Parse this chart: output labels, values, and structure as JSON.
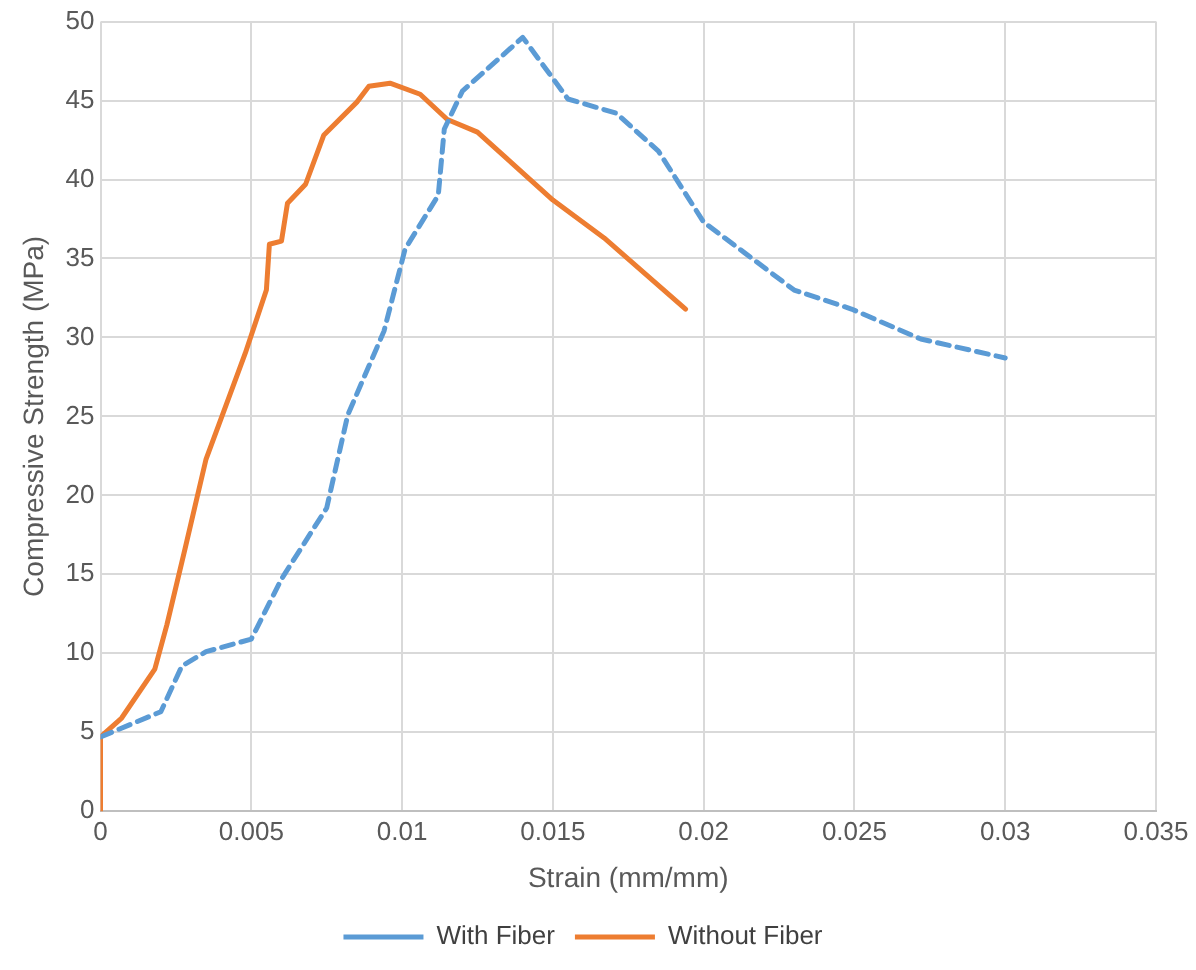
{
  "chart_data": {
    "type": "line",
    "xlabel": "Strain (mm/mm)",
    "ylabel": "Compressive Strength (MPa)",
    "xlim": [
      0,
      0.035
    ],
    "xticks": [
      0,
      0.005,
      0.01,
      0.015,
      0.02,
      0.025,
      0.03,
      0.035
    ],
    "ylim": [
      0,
      50
    ],
    "yticks": [
      0,
      5,
      10,
      15,
      20,
      25,
      30,
      35,
      40,
      45,
      50
    ],
    "grid": true,
    "legend": "bottom",
    "marker": "none",
    "series": [
      {
        "name": "With Fiber",
        "color": "#5b9bd5",
        "line_style": "dashed",
        "x": [
          0,
          0.002,
          0.0027,
          0.0035,
          0.005,
          0.006,
          0.0075,
          0.0082,
          0.0094,
          0.0101,
          0.0112,
          0.0114,
          0.012,
          0.014,
          0.0155,
          0.0171,
          0.0185,
          0.02,
          0.023,
          0.0249,
          0.0272,
          0.03
        ],
        "values": [
          4.7,
          6.3,
          9.2,
          10.1,
          10.9,
          14.7,
          19.2,
          25.1,
          30.4,
          35.6,
          39,
          43.2,
          45.6,
          49,
          45.1,
          44.2,
          41.8,
          37.3,
          33,
          31.8,
          29.9,
          28.7
        ]
      },
      {
        "name": "Without Fiber",
        "color": "#ed7d31",
        "line_style": "solid",
        "x": [
          0,
          0,
          0.0007,
          0.0018,
          0.0022,
          0.0028,
          0.0035,
          0.0042,
          0.0048,
          0.0055,
          0.0056,
          0.006,
          0.0062,
          0.0068,
          0.0074,
          0.0085,
          0.0089,
          0.0096,
          0.0106,
          0.0115,
          0.0125,
          0.015,
          0.0167,
          0.0194
        ],
        "values": [
          0,
          4.7,
          5.9,
          9,
          11.8,
          16.6,
          22.3,
          25.9,
          29,
          33,
          35.9,
          36.1,
          38.5,
          39.7,
          42.8,
          44.9,
          45.9,
          46.1,
          45.4,
          43.8,
          43,
          38.7,
          36.3,
          31.8
        ]
      }
    ]
  }
}
